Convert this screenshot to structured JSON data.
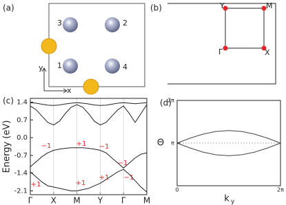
{
  "panel_a": {
    "label": "(a)",
    "atoms": [
      "3",
      "2",
      "1",
      "4"
    ],
    "x_axis": "x",
    "y_axis": "y"
  },
  "panel_b": {
    "label": "(b)",
    "points": [
      "Y",
      "M",
      "Γ",
      "X"
    ]
  },
  "chart_data": [
    {
      "type": "line",
      "panel_label": "(c)",
      "ylabel": "Energy (eV)",
      "x": [
        0,
        0.25,
        0.5,
        0.75,
        1,
        1.25,
        1.5,
        1.75,
        2,
        2.25,
        2.5,
        2.75,
        3,
        3.25,
        3.5,
        3.75,
        4,
        4.25,
        4.5,
        4.75,
        5
      ],
      "series": [
        {
          "color": "#222",
          "values": [
            1.38,
            1.36,
            1.32,
            1.28,
            1.27,
            1.29,
            1.33,
            1.36,
            1.38,
            1.36,
            1.33,
            1.29,
            1.27,
            1.28,
            1.32,
            1.36,
            1.38,
            1.36,
            1.34,
            1.36,
            1.38
          ]
        },
        {
          "color": "#222",
          "values": [
            1.25,
            1.1,
            0.85,
            0.6,
            0.5,
            0.65,
            0.95,
            1.2,
            1.3,
            1.2,
            0.95,
            0.65,
            0.5,
            0.6,
            0.85,
            1.1,
            1.25,
            0.95,
            0.6,
            0.95,
            1.3
          ]
        },
        {
          "color": "#222",
          "values": [
            -1.15,
            -0.95,
            -0.75,
            -0.6,
            -0.5,
            -0.45,
            -0.42,
            -0.4,
            -0.4,
            -0.4,
            -0.42,
            -0.45,
            -0.5,
            -0.6,
            -0.8,
            -1.0,
            -1.2,
            -1.0,
            -0.8,
            -0.65,
            -0.6
          ]
        },
        {
          "color": "#222",
          "values": [
            -1.35,
            -1.55,
            -1.75,
            -1.9,
            -1.95,
            -2.0,
            -2.05,
            -2.1,
            -2.1,
            -2.05,
            -2.0,
            -1.9,
            -1.8,
            -1.65,
            -1.5,
            -1.35,
            -1.25,
            -1.45,
            -1.7,
            -1.95,
            -2.15
          ]
        }
      ],
      "annotations": [
        "−1",
        "+1",
        "−1",
        "−1",
        "+1",
        "+1",
        "+1",
        "−1"
      ],
      "annotation_color": "#e0262a",
      "xlim": [
        0,
        5
      ],
      "xticks": [
        {
          "value": 0,
          "label": "Γ"
        },
        {
          "value": 1,
          "label": "X"
        },
        {
          "value": 2,
          "label": "M"
        },
        {
          "value": 3,
          "label": "Y"
        },
        {
          "value": 4,
          "label": "Γ"
        },
        {
          "value": 5,
          "label": "M"
        }
      ],
      "ylim": [
        -2.25,
        1.55
      ],
      "yticks": [
        1.4,
        0.7,
        {
          "value": 0,
          "label": "0.0"
        },
        -0.7,
        -1.4,
        -2.1
      ],
      "grid": "x"
    },
    {
      "type": "line",
      "panel_label": "(d)",
      "ylabel": "Θ",
      "xlabel": "k",
      "xlabel_subscript": "y",
      "x": [
        0,
        0.785,
        1.571,
        2.356,
        3.142,
        3.927,
        4.712,
        5.498,
        6.283
      ],
      "series": [
        {
          "color": "#444",
          "values": [
            3.14,
            3.5,
            3.8,
            4.0,
            4.07,
            4.0,
            3.8,
            3.5,
            3.14
          ]
        },
        {
          "color": "#444",
          "values": [
            3.14,
            2.78,
            2.48,
            2.28,
            2.21,
            2.28,
            2.48,
            2.78,
            3.14
          ]
        }
      ],
      "xlim": [
        0,
        6.283
      ],
      "xticks": [
        0,
        {
          "value": 6.283,
          "label": "2π"
        }
      ],
      "ylim": [
        0,
        6.283
      ],
      "yticks": [
        {
          "value": 6.283,
          "label": "2π"
        },
        {
          "value": 3.1416,
          "label": "π"
        }
      ],
      "grid": "y"
    }
  ]
}
